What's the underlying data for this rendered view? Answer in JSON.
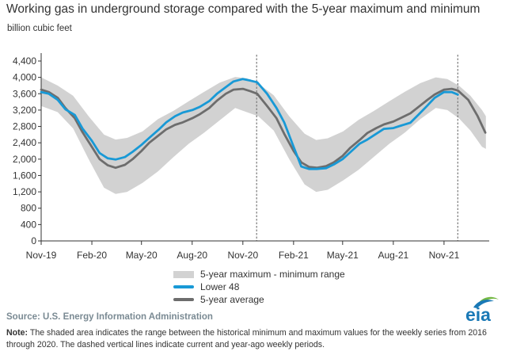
{
  "title": "Working gas in underground  storage compared with the 5-year maximum and minimum",
  "units_label": "billion cubic feet",
  "legend": {
    "range": "5-year maximum - minimum range",
    "lower48": "Lower 48",
    "average": "5-year average"
  },
  "source": "Source:  U.S. Energy Information Administration",
  "note_label": "Note:",
  "note_text": "The shaded area indicates the range between the historical minimum and maximum values for the weekly series from 2016 through 2020. The dashed vertical lines indicate current and year-ago weekly periods.",
  "logo_text": "eia",
  "colors": {
    "lower48": "#1899d6",
    "average": "#6d6d6d",
    "range": "#d2d2d2",
    "axis": "#333333",
    "logo_blue": "#1a79b6",
    "logo_green": "#74b843"
  },
  "chart_data": {
    "type": "area",
    "title": "Working gas in underground  storage compared with the 5-year maximum and minimum",
    "ylabel": "billion cubic feet",
    "ylim": [
      0,
      4400
    ],
    "yticks": [
      0,
      400,
      800,
      1200,
      1600,
      2000,
      2400,
      2800,
      3200,
      3600,
      4000,
      4400
    ],
    "ytick_labels": [
      "0",
      "400",
      "800",
      "1,200",
      "1,600",
      "2,000",
      "2,400",
      "2,800",
      "3,200",
      "3,600",
      "4,000",
      "4,400"
    ],
    "xlim": [
      "2019-11-01",
      "2022-01-22"
    ],
    "xticks": [
      "2019-11-01",
      "2020-02-01",
      "2020-05-01",
      "2020-08-01",
      "2020-11-01",
      "2021-02-01",
      "2021-05-01",
      "2021-08-01",
      "2021-11-01"
    ],
    "xtick_labels": [
      "Nov-19",
      "Feb-20",
      "May-20",
      "Aug-20",
      "Nov-20",
      "Feb-21",
      "May-21",
      "Aug-21",
      "Nov-21"
    ],
    "grid": false,
    "legend_position": "bottom-center",
    "current_week_markers": [
      "2020-11-26",
      "2021-11-26"
    ],
    "range_band": {
      "name": "5-year maximum - minimum range",
      "x": [
        "2019-11-01",
        "2019-12-01",
        "2019-12-29",
        "2020-01-26",
        "2020-02-23",
        "2020-03-15",
        "2020-04-05",
        "2020-05-03",
        "2020-05-31",
        "2020-06-28",
        "2020-07-26",
        "2020-08-23",
        "2020-09-20",
        "2020-10-18",
        "2020-11-08",
        "2020-11-29",
        "2020-12-27",
        "2021-01-24",
        "2021-02-21",
        "2021-03-14",
        "2021-04-04",
        "2021-05-02",
        "2021-05-30",
        "2021-06-27",
        "2021-07-25",
        "2021-08-22",
        "2021-09-19",
        "2021-10-17",
        "2021-11-07",
        "2021-11-28",
        "2021-12-19",
        "2022-01-09",
        "2022-01-16"
      ],
      "max": [
        4000,
        3800,
        3550,
        3050,
        2600,
        2480,
        2520,
        2680,
        2980,
        3180,
        3420,
        3650,
        3870,
        4010,
        3980,
        3850,
        3560,
        3050,
        2620,
        2470,
        2510,
        2680,
        2960,
        3180,
        3420,
        3650,
        3860,
        4000,
        3960,
        3800,
        3550,
        3200,
        3050
      ],
      "min": [
        3300,
        3150,
        2750,
        2000,
        1300,
        1150,
        1200,
        1420,
        1700,
        2050,
        2380,
        2650,
        2950,
        3250,
        3150,
        3050,
        2700,
        2000,
        1380,
        1200,
        1250,
        1480,
        1740,
        2060,
        2380,
        2650,
        2980,
        3250,
        3200,
        3000,
        2700,
        2300,
        2250
      ]
    },
    "series": [
      {
        "name": "Lower 48",
        "x": [
          "2019-11-01",
          "2019-11-15",
          "2019-12-01",
          "2019-12-15",
          "2020-01-01",
          "2020-01-15",
          "2020-02-01",
          "2020-02-15",
          "2020-03-01",
          "2020-03-15",
          "2020-04-01",
          "2020-04-15",
          "2020-05-01",
          "2020-05-15",
          "2020-06-01",
          "2020-06-15",
          "2020-07-01",
          "2020-07-15",
          "2020-08-01",
          "2020-08-15",
          "2020-09-01",
          "2020-09-15",
          "2020-10-01",
          "2020-10-15",
          "2020-11-01",
          "2020-11-15",
          "2020-11-27",
          "2020-12-15",
          "2021-01-01",
          "2021-01-15",
          "2021-02-01",
          "2021-02-15",
          "2021-03-01",
          "2021-03-15",
          "2021-04-01",
          "2021-04-15",
          "2021-05-01",
          "2021-05-15",
          "2021-06-01",
          "2021-06-15",
          "2021-07-01",
          "2021-07-15",
          "2021-08-01",
          "2021-08-15",
          "2021-09-01",
          "2021-09-15",
          "2021-10-01",
          "2021-10-15",
          "2021-11-01",
          "2021-11-15",
          "2021-11-26"
        ],
        "values": [
          3640,
          3600,
          3450,
          3220,
          3080,
          2750,
          2450,
          2150,
          2020,
          1990,
          2050,
          2180,
          2350,
          2520,
          2720,
          2900,
          3050,
          3140,
          3200,
          3280,
          3420,
          3600,
          3760,
          3900,
          3960,
          3920,
          3880,
          3600,
          3250,
          2900,
          2300,
          1820,
          1760,
          1760,
          1780,
          1870,
          2000,
          2170,
          2380,
          2480,
          2620,
          2740,
          2760,
          2820,
          2890,
          3080,
          3300,
          3500,
          3640,
          3640,
          3580
        ]
      },
      {
        "name": "5-year average",
        "x": [
          "2019-11-01",
          "2019-11-15",
          "2019-12-01",
          "2019-12-15",
          "2020-01-01",
          "2020-01-15",
          "2020-02-01",
          "2020-02-15",
          "2020-03-01",
          "2020-03-15",
          "2020-04-01",
          "2020-04-15",
          "2020-05-01",
          "2020-05-15",
          "2020-06-01",
          "2020-06-15",
          "2020-07-01",
          "2020-07-15",
          "2020-08-01",
          "2020-08-15",
          "2020-09-01",
          "2020-09-15",
          "2020-10-01",
          "2020-10-15",
          "2020-11-01",
          "2020-11-15",
          "2020-11-27",
          "2020-12-15",
          "2021-01-01",
          "2021-01-15",
          "2021-02-01",
          "2021-02-15",
          "2021-03-01",
          "2021-03-15",
          "2021-04-01",
          "2021-04-15",
          "2021-05-01",
          "2021-05-15",
          "2021-06-01",
          "2021-06-15",
          "2021-07-01",
          "2021-07-15",
          "2021-08-01",
          "2021-08-15",
          "2021-09-01",
          "2021-09-15",
          "2021-10-01",
          "2021-10-15",
          "2021-11-01",
          "2021-11-15",
          "2021-11-26",
          "2021-12-15",
          "2022-01-01",
          "2022-01-15"
        ],
        "values": [
          3700,
          3640,
          3500,
          3250,
          3000,
          2660,
          2300,
          2000,
          1850,
          1790,
          1860,
          2000,
          2200,
          2400,
          2580,
          2730,
          2840,
          2900,
          3000,
          3100,
          3250,
          3430,
          3600,
          3700,
          3720,
          3660,
          3600,
          3300,
          3000,
          2620,
          2200,
          1920,
          1810,
          1790,
          1830,
          1920,
          2080,
          2280,
          2470,
          2640,
          2760,
          2850,
          2920,
          3010,
          3120,
          3270,
          3440,
          3580,
          3700,
          3720,
          3680,
          3450,
          3050,
          2650
        ]
      }
    ]
  }
}
